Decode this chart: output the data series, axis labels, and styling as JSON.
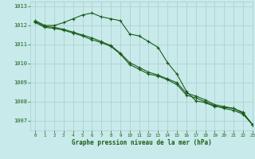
{
  "xlabel": "Graphe pression niveau de la mer (hPa)",
  "background_color": "#c8eaea",
  "grid_color": "#aacccc",
  "line_color": "#1a5c1a",
  "ylim": [
    1006.5,
    1013.25
  ],
  "xlim": [
    -0.5,
    23
  ],
  "yticks": [
    1007,
    1008,
    1009,
    1010,
    1011,
    1012,
    1013
  ],
  "xticks": [
    0,
    1,
    2,
    3,
    4,
    5,
    6,
    7,
    8,
    9,
    10,
    11,
    12,
    13,
    14,
    15,
    16,
    17,
    18,
    19,
    20,
    21,
    22,
    23
  ],
  "line1": [
    1012.25,
    1012.0,
    1012.0,
    1012.15,
    1012.35,
    1012.55,
    1012.65,
    1012.45,
    1012.35,
    1012.25,
    1011.55,
    1011.45,
    1011.15,
    1010.85,
    1010.05,
    1009.45,
    1008.55,
    1008.05,
    1007.95,
    1007.75,
    1007.7,
    1007.65,
    1007.45,
    1006.8
  ],
  "line2": [
    1012.2,
    1011.95,
    1011.9,
    1011.8,
    1011.65,
    1011.5,
    1011.35,
    1011.15,
    1010.95,
    1010.55,
    1010.05,
    1009.8,
    1009.55,
    1009.4,
    1009.2,
    1009.0,
    1008.45,
    1008.3,
    1008.1,
    1007.85,
    1007.75,
    1007.65,
    1007.4,
    1006.8
  ],
  "line3": [
    1012.15,
    1011.9,
    1011.85,
    1011.75,
    1011.6,
    1011.45,
    1011.25,
    1011.1,
    1010.9,
    1010.5,
    1009.95,
    1009.7,
    1009.45,
    1009.35,
    1009.15,
    1008.9,
    1008.35,
    1008.2,
    1008.0,
    1007.8,
    1007.65,
    1007.55,
    1007.35,
    1006.8
  ]
}
